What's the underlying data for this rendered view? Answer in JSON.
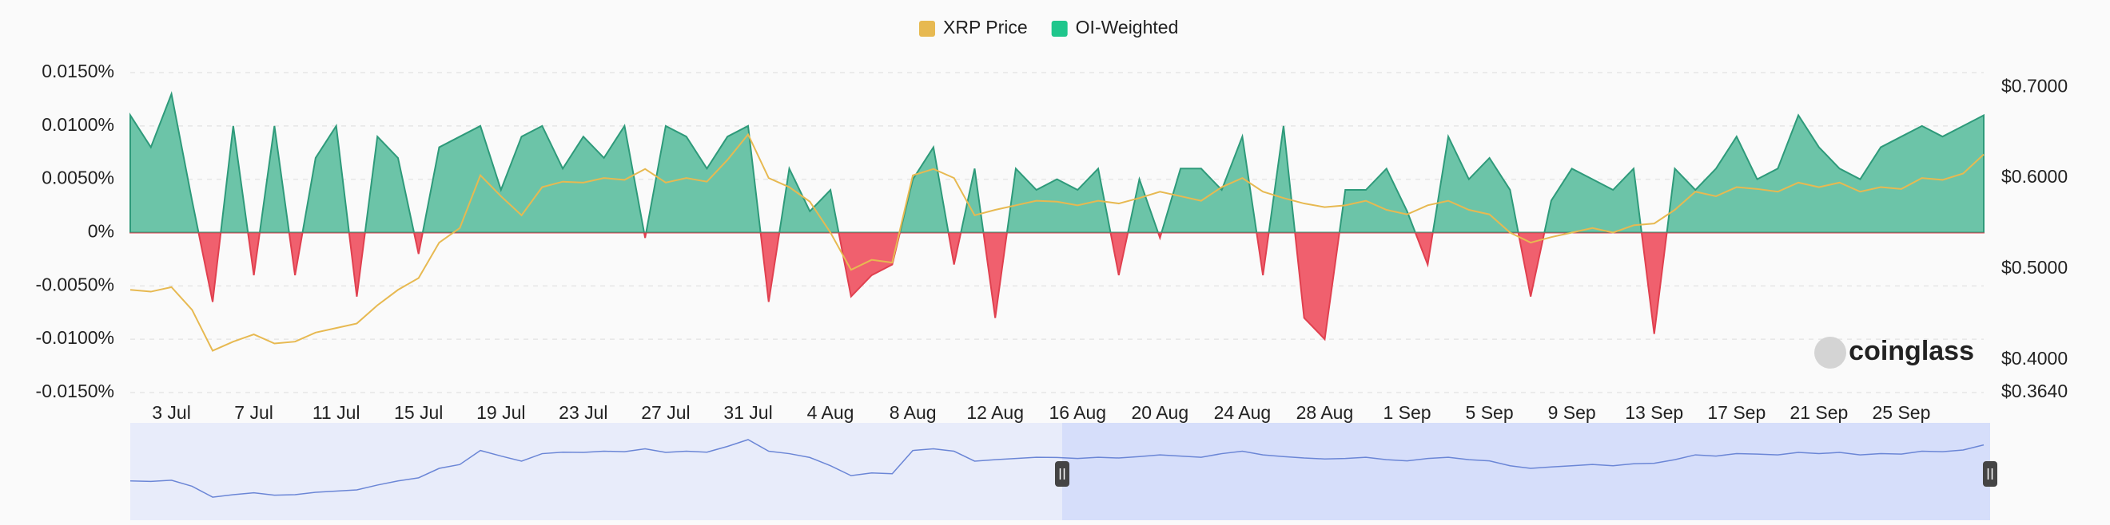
{
  "chart_data": {
    "type": "area",
    "watermark": "coinglass",
    "categories": [
      null,
      null,
      "3 Jul",
      null,
      null,
      null,
      "7 Jul",
      null,
      null,
      null,
      "11 Jul",
      null,
      null,
      null,
      "15 Jul",
      null,
      null,
      null,
      "19 Jul",
      null,
      null,
      null,
      "23 Jul",
      null,
      null,
      null,
      "27 Jul",
      null,
      null,
      null,
      "31 Jul",
      null,
      null,
      null,
      "4 Aug",
      null,
      null,
      null,
      "8 Aug",
      null,
      null,
      null,
      "12 Aug",
      null,
      null,
      null,
      "16 Aug",
      null,
      null,
      null,
      "20 Aug",
      null,
      null,
      null,
      "24 Aug",
      null,
      null,
      null,
      "28 Aug",
      null,
      null,
      null,
      "1 Sep",
      null,
      null,
      null,
      "5 Sep",
      null,
      null,
      null,
      "9 Sep",
      null,
      null,
      null,
      "13 Sep",
      null,
      null,
      null,
      "17 Sep",
      null,
      null,
      null,
      "21 Sep",
      null,
      null,
      null,
      "25 Sep",
      null,
      null,
      null,
      null
    ],
    "series": [
      {
        "name": "XRP Price",
        "color": "#e7b951",
        "axis": "y2",
        "values": [
          0.477,
          0.475,
          0.48,
          0.455,
          0.41,
          0.42,
          0.428,
          0.418,
          0.42,
          0.43,
          0.435,
          0.44,
          0.46,
          0.477,
          0.49,
          0.529,
          0.545,
          0.603,
          0.58,
          0.559,
          0.59,
          0.596,
          0.595,
          0.6,
          0.598,
          0.61,
          0.595,
          0.6,
          0.596,
          0.62,
          0.648,
          0.6,
          0.59,
          0.574,
          0.54,
          0.499,
          0.51,
          0.507,
          0.603,
          0.61,
          0.6,
          0.559,
          0.565,
          0.57,
          0.575,
          0.574,
          0.57,
          0.575,
          0.572,
          0.578,
          0.585,
          0.58,
          0.575,
          0.59,
          0.6,
          0.585,
          0.578,
          0.572,
          0.568,
          0.57,
          0.575,
          0.565,
          0.56,
          0.57,
          0.575,
          0.565,
          0.56,
          0.54,
          0.529,
          0.535,
          0.54,
          0.545,
          0.54,
          0.548,
          0.55,
          0.565,
          0.585,
          0.58,
          0.59,
          0.588,
          0.585,
          0.595,
          0.59,
          0.595,
          0.585,
          0.59,
          0.588,
          0.6,
          0.598,
          0.605,
          0.626
        ]
      },
      {
        "name": "OI-Weighted",
        "color": "#1fc68c",
        "positive_color": "#6cc4a8",
        "negative_color": "#f0606e",
        "values": [
          0.011,
          0.008,
          0.013,
          0.003,
          -0.0065,
          0.01,
          -0.004,
          0.01,
          -0.004,
          0.007,
          0.01,
          -0.006,
          0.009,
          0.007,
          -0.002,
          0.008,
          0.009,
          0.01,
          0.004,
          0.009,
          0.01,
          0.006,
          0.009,
          0.007,
          0.01,
          -0.0005,
          0.01,
          0.009,
          0.006,
          0.009,
          0.01,
          -0.0065,
          0.006,
          0.002,
          0.004,
          -0.006,
          -0.004,
          -0.003,
          0.005,
          0.008,
          -0.003,
          0.006,
          -0.008,
          0.006,
          0.004,
          0.005,
          0.004,
          0.006,
          -0.004,
          0.005,
          -0.0005,
          0.006,
          0.006,
          0.004,
          0.009,
          -0.004,
          0.01,
          -0.008,
          -0.01,
          0.004,
          0.004,
          0.006,
          0.002,
          -0.003,
          0.009,
          0.005,
          0.007,
          0.004,
          -0.006,
          0.003,
          0.006,
          0.005,
          0.004,
          0.006,
          -0.0095,
          0.006,
          0.004,
          0.006,
          0.009,
          0.005,
          0.006,
          0.011,
          0.008,
          0.006,
          0.005,
          0.008,
          0.009,
          0.01,
          0.009,
          0.01,
          0.011
        ]
      }
    ],
    "ylim": [
      -0.015,
      0.015
    ],
    "yticks": [
      {
        "value": -0.015,
        "label": "-0.0150%"
      },
      {
        "value": -0.01,
        "label": "-0.0100%"
      },
      {
        "value": -0.005,
        "label": "-0.0050%"
      },
      {
        "value": 0,
        "label": "0%"
      },
      {
        "value": 0.005,
        "label": "0.0050%"
      },
      {
        "value": 0.01,
        "label": "0.0100%"
      },
      {
        "value": 0.015,
        "label": "0.0150%"
      }
    ],
    "y2lim": [
      0.364,
      0.716
    ],
    "y2ticks": [
      {
        "value": 0.364,
        "label": "$0.3640"
      },
      {
        "value": 0.4,
        "label": "$0.4000"
      },
      {
        "value": 0.5,
        "label": "$0.5000"
      },
      {
        "value": 0.6,
        "label": "$0.6000"
      },
      {
        "value": 0.7,
        "label": "$0.7000"
      }
    ],
    "grid": true,
    "legend": "top"
  }
}
